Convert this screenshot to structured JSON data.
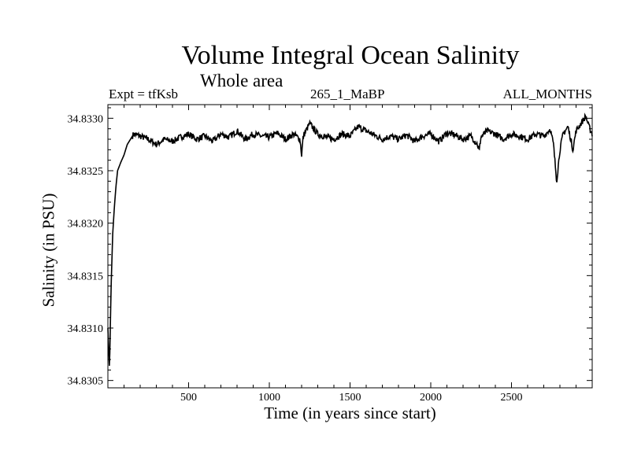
{
  "chart_data": {
    "type": "line",
    "title": "Volume Integral Ocean Salinity",
    "subtitle": "Whole area",
    "header_left": "Expt = tfKsb",
    "header_center": "265_1_MaBP",
    "header_right": "ALL_MONTHS",
    "xlabel": "Time (in years since start)",
    "ylabel": "Salinity (in PSU)",
    "xlim": [
      0,
      3000
    ],
    "ylim": [
      34.83043,
      34.83313
    ],
    "x_ticks": [
      500,
      1000,
      1500,
      2000,
      2500
    ],
    "x_tick_labels": [
      "500",
      "1000",
      "1500",
      "2000",
      "2500"
    ],
    "y_ticks": [
      34.8305,
      34.831,
      34.8315,
      34.832,
      34.8325,
      34.833
    ],
    "y_tick_labels": [
      "34.8305",
      "34.8310",
      "34.8315",
      "34.8320",
      "34.8325",
      "34.8330"
    ],
    "grid": false,
    "series": [
      {
        "name": "Salinity",
        "color": "#000000",
        "x": [
          0,
          10,
          20,
          30,
          40,
          50,
          60,
          80,
          100,
          120,
          140,
          160,
          200,
          250,
          300,
          350,
          400,
          450,
          500,
          550,
          600,
          650,
          700,
          750,
          800,
          850,
          900,
          950,
          1000,
          1050,
          1100,
          1150,
          1190,
          1200,
          1210,
          1250,
          1300,
          1350,
          1400,
          1450,
          1500,
          1550,
          1600,
          1650,
          1700,
          1750,
          1800,
          1850,
          1900,
          1950,
          2000,
          2050,
          2100,
          2150,
          2200,
          2250,
          2290,
          2300,
          2310,
          2350,
          2400,
          2450,
          2500,
          2550,
          2600,
          2650,
          2700,
          2740,
          2760,
          2780,
          2790,
          2800,
          2820,
          2850,
          2870,
          2880,
          2900,
          2930,
          2960,
          2980,
          3000
        ],
        "y": [
          34.831,
          34.8306,
          34.8314,
          34.8319,
          34.83215,
          34.83235,
          34.8325,
          34.83258,
          34.83265,
          34.83275,
          34.8328,
          34.83285,
          34.83283,
          34.8328,
          34.83275,
          34.8328,
          34.83278,
          34.83282,
          34.83285,
          34.8328,
          34.83283,
          34.83278,
          34.83285,
          34.83282,
          34.83288,
          34.8328,
          34.83285,
          34.83283,
          34.83282,
          34.83286,
          34.8328,
          34.83285,
          34.8328,
          34.83265,
          34.83283,
          34.83295,
          34.83285,
          34.83282,
          34.8328,
          34.83285,
          34.83283,
          34.83292,
          34.83288,
          34.83284,
          34.8328,
          34.83283,
          34.8328,
          34.83284,
          34.83278,
          34.83283,
          34.83285,
          34.83278,
          34.83286,
          34.83284,
          34.8328,
          34.83283,
          34.83275,
          34.83268,
          34.83282,
          34.83288,
          34.83285,
          34.8328,
          34.83285,
          34.83283,
          34.8328,
          34.83285,
          34.83283,
          34.8329,
          34.83275,
          34.8324,
          34.83255,
          34.8327,
          34.83285,
          34.83292,
          34.83278,
          34.8327,
          34.83288,
          34.83295,
          34.83302,
          34.83292,
          34.83285
        ]
      }
    ]
  }
}
